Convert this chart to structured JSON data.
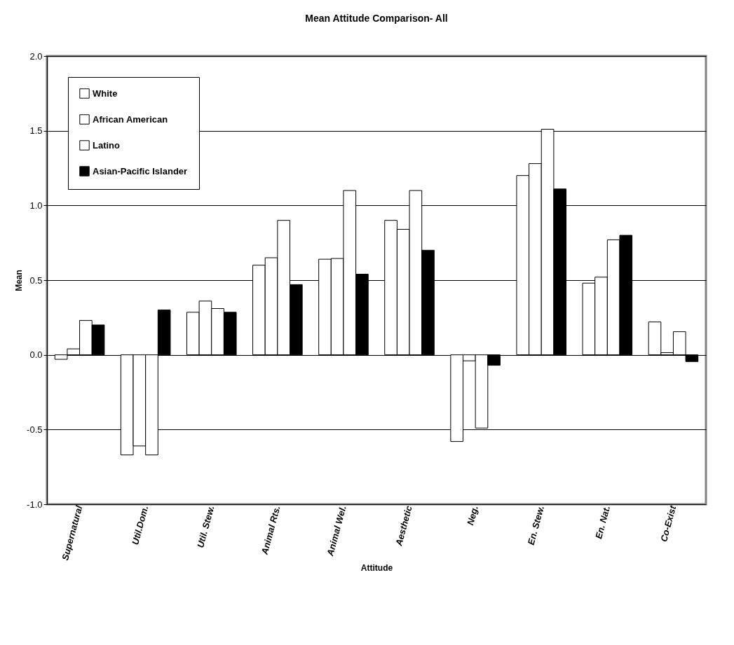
{
  "chart_data": {
    "type": "bar",
    "title": "Mean Attitude Comparison- All",
    "xlabel": "Attitude",
    "ylabel": "Mean",
    "categories": [
      "Supernatural",
      "Util.Dom.",
      "Util. Stew.",
      "Animal Rts.",
      "Animal Wel.",
      "Aesthetic",
      "Neg.",
      "En. Stew.",
      "En. Nat.",
      "Co-Exist"
    ],
    "series": [
      {
        "name": "White",
        "color": "#ffffff",
        "values": [
          -0.03,
          -0.67,
          0.285,
          0.6,
          0.64,
          0.9,
          -0.58,
          1.2,
          0.48,
          0.22
        ]
      },
      {
        "name": "African American",
        "color": "#ffffff",
        "values": [
          0.04,
          -0.61,
          0.36,
          0.65,
          0.645,
          0.84,
          -0.04,
          1.28,
          0.52,
          0.015
        ]
      },
      {
        "name": "Latino",
        "color": "#ffffff",
        "values": [
          0.23,
          -0.67,
          0.31,
          0.9,
          1.1,
          1.1,
          -0.49,
          1.51,
          0.77,
          0.155
        ]
      },
      {
        "name": "Asian-Pacific Islander",
        "color": "#000000",
        "values": [
          0.2,
          0.3,
          0.285,
          0.47,
          0.54,
          0.7,
          -0.07,
          1.11,
          0.8,
          -0.045
        ]
      }
    ],
    "ylim": [
      -1,
      2
    ],
    "yticks": [
      {
        "value": -1,
        "label": "-1.0"
      },
      {
        "value": -0.5,
        "label": "-0.5"
      },
      {
        "value": 0,
        "label": "0.0"
      },
      {
        "value": 0.5,
        "label": "0.5"
      },
      {
        "value": 1,
        "label": "1.0"
      },
      {
        "value": 1.5,
        "label": "1.5"
      },
      {
        "value": 2,
        "label": "2.0"
      }
    ],
    "grid": "y",
    "legend": "top left"
  }
}
